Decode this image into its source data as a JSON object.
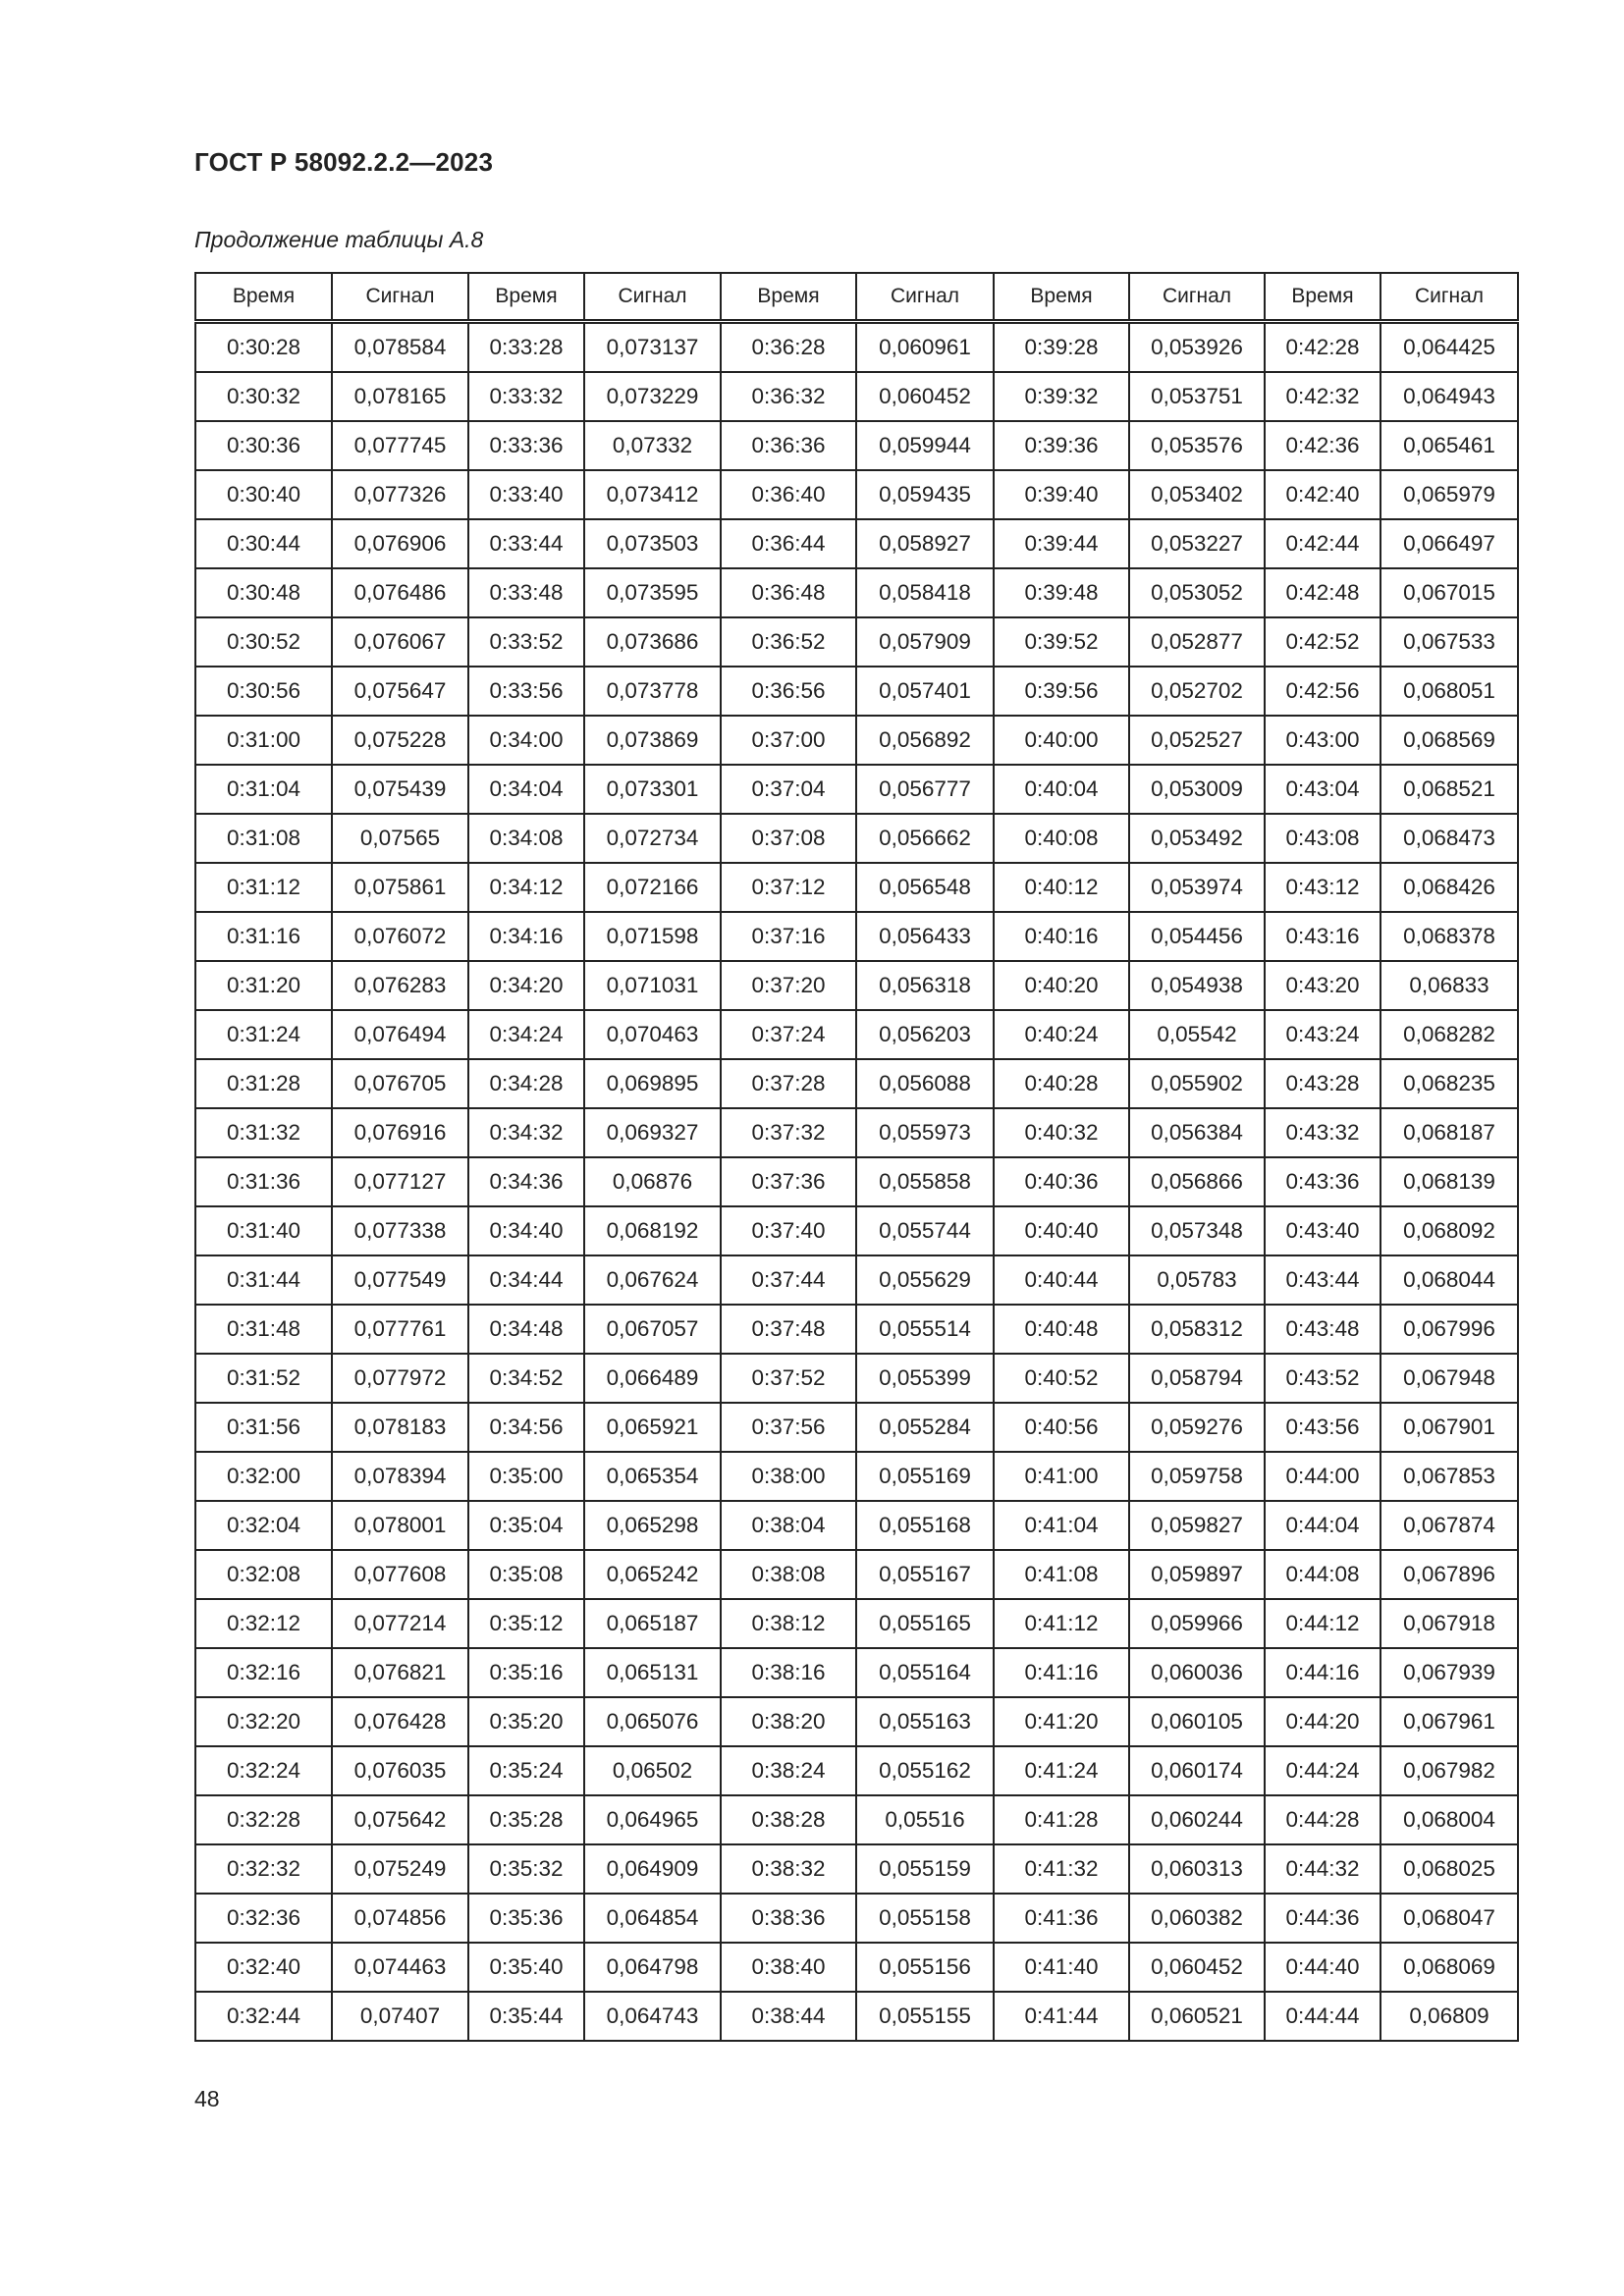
{
  "header": {
    "doc_title": "ГОСТ Р 58092.2.2—2023",
    "caption": "Продолжение таблицы А.8"
  },
  "table": {
    "columns": [
      "Время",
      "Сигнал",
      "Время",
      "Сигнал",
      "Время",
      "Сигнал",
      "Время",
      "Сигнал",
      "Время",
      "Сигнал"
    ],
    "rows": [
      [
        "0:30:28",
        "0,078584",
        "0:33:28",
        "0,073137",
        "0:36:28",
        "0,060961",
        "0:39:28",
        "0,053926",
        "0:42:28",
        "0,064425"
      ],
      [
        "0:30:32",
        "0,078165",
        "0:33:32",
        "0,073229",
        "0:36:32",
        "0,060452",
        "0:39:32",
        "0,053751",
        "0:42:32",
        "0,064943"
      ],
      [
        "0:30:36",
        "0,077745",
        "0:33:36",
        "0,07332",
        "0:36:36",
        "0,059944",
        "0:39:36",
        "0,053576",
        "0:42:36",
        "0,065461"
      ],
      [
        "0:30:40",
        "0,077326",
        "0:33:40",
        "0,073412",
        "0:36:40",
        "0,059435",
        "0:39:40",
        "0,053402",
        "0:42:40",
        "0,065979"
      ],
      [
        "0:30:44",
        "0,076906",
        "0:33:44",
        "0,073503",
        "0:36:44",
        "0,058927",
        "0:39:44",
        "0,053227",
        "0:42:44",
        "0,066497"
      ],
      [
        "0:30:48",
        "0,076486",
        "0:33:48",
        "0,073595",
        "0:36:48",
        "0,058418",
        "0:39:48",
        "0,053052",
        "0:42:48",
        "0,067015"
      ],
      [
        "0:30:52",
        "0,076067",
        "0:33:52",
        "0,073686",
        "0:36:52",
        "0,057909",
        "0:39:52",
        "0,052877",
        "0:42:52",
        "0,067533"
      ],
      [
        "0:30:56",
        "0,075647",
        "0:33:56",
        "0,073778",
        "0:36:56",
        "0,057401",
        "0:39:56",
        "0,052702",
        "0:42:56",
        "0,068051"
      ],
      [
        "0:31:00",
        "0,075228",
        "0:34:00",
        "0,073869",
        "0:37:00",
        "0,056892",
        "0:40:00",
        "0,052527",
        "0:43:00",
        "0,068569"
      ],
      [
        "0:31:04",
        "0,075439",
        "0:34:04",
        "0,073301",
        "0:37:04",
        "0,056777",
        "0:40:04",
        "0,053009",
        "0:43:04",
        "0,068521"
      ],
      [
        "0:31:08",
        "0,07565",
        "0:34:08",
        "0,072734",
        "0:37:08",
        "0,056662",
        "0:40:08",
        "0,053492",
        "0:43:08",
        "0,068473"
      ],
      [
        "0:31:12",
        "0,075861",
        "0:34:12",
        "0,072166",
        "0:37:12",
        "0,056548",
        "0:40:12",
        "0,053974",
        "0:43:12",
        "0,068426"
      ],
      [
        "0:31:16",
        "0,076072",
        "0:34:16",
        "0,071598",
        "0:37:16",
        "0,056433",
        "0:40:16",
        "0,054456",
        "0:43:16",
        "0,068378"
      ],
      [
        "0:31:20",
        "0,076283",
        "0:34:20",
        "0,071031",
        "0:37:20",
        "0,056318",
        "0:40:20",
        "0,054938",
        "0:43:20",
        "0,06833"
      ],
      [
        "0:31:24",
        "0,076494",
        "0:34:24",
        "0,070463",
        "0:37:24",
        "0,056203",
        "0:40:24",
        "0,05542",
        "0:43:24",
        "0,068282"
      ],
      [
        "0:31:28",
        "0,076705",
        "0:34:28",
        "0,069895",
        "0:37:28",
        "0,056088",
        "0:40:28",
        "0,055902",
        "0:43:28",
        "0,068235"
      ],
      [
        "0:31:32",
        "0,076916",
        "0:34:32",
        "0,069327",
        "0:37:32",
        "0,055973",
        "0:40:32",
        "0,056384",
        "0:43:32",
        "0,068187"
      ],
      [
        "0:31:36",
        "0,077127",
        "0:34:36",
        "0,06876",
        "0:37:36",
        "0,055858",
        "0:40:36",
        "0,056866",
        "0:43:36",
        "0,068139"
      ],
      [
        "0:31:40",
        "0,077338",
        "0:34:40",
        "0,068192",
        "0:37:40",
        "0,055744",
        "0:40:40",
        "0,057348",
        "0:43:40",
        "0,068092"
      ],
      [
        "0:31:44",
        "0,077549",
        "0:34:44",
        "0,067624",
        "0:37:44",
        "0,055629",
        "0:40:44",
        "0,05783",
        "0:43:44",
        "0,068044"
      ],
      [
        "0:31:48",
        "0,077761",
        "0:34:48",
        "0,067057",
        "0:37:48",
        "0,055514",
        "0:40:48",
        "0,058312",
        "0:43:48",
        "0,067996"
      ],
      [
        "0:31:52",
        "0,077972",
        "0:34:52",
        "0,066489",
        "0:37:52",
        "0,055399",
        "0:40:52",
        "0,058794",
        "0:43:52",
        "0,067948"
      ],
      [
        "0:31:56",
        "0,078183",
        "0:34:56",
        "0,065921",
        "0:37:56",
        "0,055284",
        "0:40:56",
        "0,059276",
        "0:43:56",
        "0,067901"
      ],
      [
        "0:32:00",
        "0,078394",
        "0:35:00",
        "0,065354",
        "0:38:00",
        "0,055169",
        "0:41:00",
        "0,059758",
        "0:44:00",
        "0,067853"
      ],
      [
        "0:32:04",
        "0,078001",
        "0:35:04",
        "0,065298",
        "0:38:04",
        "0,055168",
        "0:41:04",
        "0,059827",
        "0:44:04",
        "0,067874"
      ],
      [
        "0:32:08",
        "0,077608",
        "0:35:08",
        "0,065242",
        "0:38:08",
        "0,055167",
        "0:41:08",
        "0,059897",
        "0:44:08",
        "0,067896"
      ],
      [
        "0:32:12",
        "0,077214",
        "0:35:12",
        "0,065187",
        "0:38:12",
        "0,055165",
        "0:41:12",
        "0,059966",
        "0:44:12",
        "0,067918"
      ],
      [
        "0:32:16",
        "0,076821",
        "0:35:16",
        "0,065131",
        "0:38:16",
        "0,055164",
        "0:41:16",
        "0,060036",
        "0:44:16",
        "0,067939"
      ],
      [
        "0:32:20",
        "0,076428",
        "0:35:20",
        "0,065076",
        "0:38:20",
        "0,055163",
        "0:41:20",
        "0,060105",
        "0:44:20",
        "0,067961"
      ],
      [
        "0:32:24",
        "0,076035",
        "0:35:24",
        "0,06502",
        "0:38:24",
        "0,055162",
        "0:41:24",
        "0,060174",
        "0:44:24",
        "0,067982"
      ],
      [
        "0:32:28",
        "0,075642",
        "0:35:28",
        "0,064965",
        "0:38:28",
        "0,05516",
        "0:41:28",
        "0,060244",
        "0:44:28",
        "0,068004"
      ],
      [
        "0:32:32",
        "0,075249",
        "0:35:32",
        "0,064909",
        "0:38:32",
        "0,055159",
        "0:41:32",
        "0,060313",
        "0:44:32",
        "0,068025"
      ],
      [
        "0:32:36",
        "0,074856",
        "0:35:36",
        "0,064854",
        "0:38:36",
        "0,055158",
        "0:41:36",
        "0,060382",
        "0:44:36",
        "0,068047"
      ],
      [
        "0:32:40",
        "0,074463",
        "0:35:40",
        "0,064798",
        "0:38:40",
        "0,055156",
        "0:41:40",
        "0,060452",
        "0:44:40",
        "0,068069"
      ],
      [
        "0:32:44",
        "0,07407",
        "0:35:44",
        "0,064743",
        "0:38:44",
        "0,055155",
        "0:41:44",
        "0,060521",
        "0:44:44",
        "0,06809"
      ]
    ]
  },
  "footer": {
    "page_number": "48"
  }
}
